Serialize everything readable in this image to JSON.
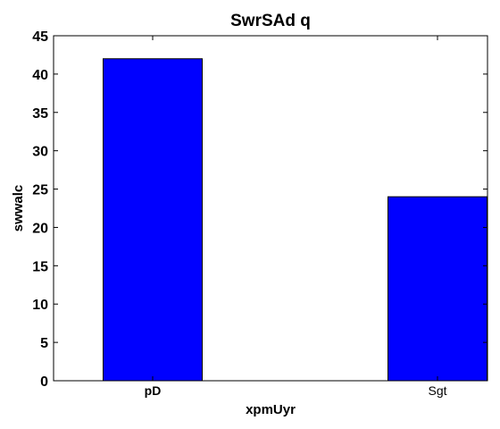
{
  "chart_data": {
    "type": "bar",
    "title": "SwrSAd q",
    "xlabel": "xpmUyr",
    "ylabel": "swwalc",
    "categories": [
      "pD",
      "Sgt"
    ],
    "values": [
      42,
      24
    ],
    "ylim": [
      0,
      45
    ],
    "yticks": [
      "0",
      "5",
      "10",
      "15",
      "20",
      "25",
      "30",
      "35",
      "40",
      "45"
    ],
    "bar_color": "#0000ff",
    "grid": false,
    "legend": "none"
  }
}
